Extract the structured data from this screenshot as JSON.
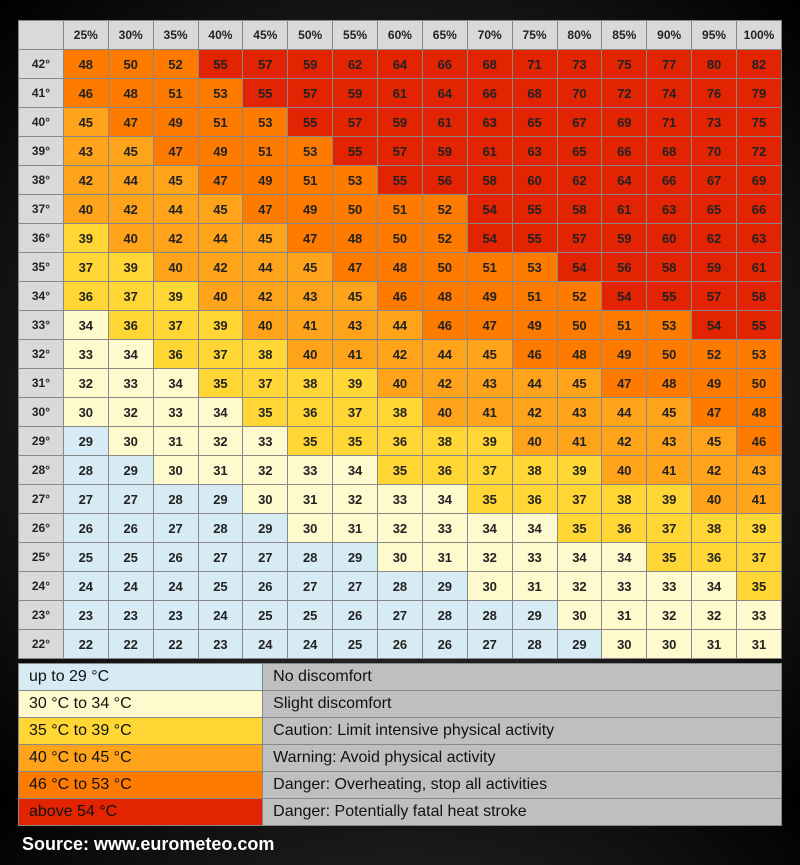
{
  "type": "heatmap-table",
  "background": "radial-gradient #3a3a3a→#000000",
  "cell_font_size": 13,
  "header_bg": "#d9d9d9",
  "columns": [
    "25%",
    "30%",
    "35%",
    "40%",
    "45%",
    "50%",
    "55%",
    "60%",
    "65%",
    "70%",
    "75%",
    "80%",
    "85%",
    "90%",
    "95%",
    "100%"
  ],
  "row_headers": [
    "42°",
    "41°",
    "40°",
    "39°",
    "38°",
    "37°",
    "36°",
    "35°",
    "34°",
    "33°",
    "32°",
    "31°",
    "30°",
    "29°",
    "28°",
    "27°",
    "26°",
    "25°",
    "24°",
    "23°",
    "22°"
  ],
  "cells": [
    [
      48,
      50,
      52,
      55,
      57,
      59,
      62,
      64,
      66,
      68,
      71,
      73,
      75,
      77,
      80,
      82
    ],
    [
      46,
      48,
      51,
      53,
      55,
      57,
      59,
      61,
      64,
      66,
      68,
      70,
      72,
      74,
      76,
      79
    ],
    [
      45,
      47,
      49,
      51,
      53,
      55,
      57,
      59,
      61,
      63,
      65,
      67,
      69,
      71,
      73,
      75
    ],
    [
      43,
      45,
      47,
      49,
      51,
      53,
      55,
      57,
      59,
      61,
      63,
      65,
      66,
      68,
      70,
      72
    ],
    [
      42,
      44,
      45,
      47,
      49,
      51,
      53,
      55,
      56,
      58,
      60,
      62,
      64,
      66,
      67,
      69
    ],
    [
      40,
      42,
      44,
      45,
      47,
      49,
      50,
      51,
      52,
      54,
      55,
      58,
      61,
      63,
      65,
      66
    ],
    [
      39,
      40,
      42,
      44,
      45,
      47,
      48,
      50,
      52,
      54,
      55,
      57,
      59,
      60,
      62,
      63
    ],
    [
      37,
      39,
      40,
      42,
      44,
      45,
      47,
      48,
      50,
      51,
      53,
      54,
      56,
      58,
      59,
      61
    ],
    [
      36,
      37,
      39,
      40,
      42,
      43,
      45,
      46,
      48,
      49,
      51,
      52,
      54,
      55,
      57,
      58
    ],
    [
      34,
      36,
      37,
      39,
      40,
      41,
      43,
      44,
      46,
      47,
      49,
      50,
      51,
      53,
      54,
      55
    ],
    [
      33,
      34,
      36,
      37,
      38,
      40,
      41,
      42,
      44,
      45,
      46,
      48,
      49,
      50,
      52,
      53
    ],
    [
      32,
      33,
      34,
      35,
      37,
      38,
      39,
      40,
      42,
      43,
      44,
      45,
      47,
      48,
      49,
      50
    ],
    [
      30,
      32,
      33,
      34,
      35,
      36,
      37,
      38,
      40,
      41,
      42,
      43,
      44,
      45,
      47,
      48
    ],
    [
      29,
      30,
      31,
      32,
      33,
      35,
      35,
      36,
      38,
      39,
      40,
      41,
      42,
      43,
      45,
      46
    ],
    [
      28,
      29,
      30,
      31,
      32,
      33,
      34,
      35,
      36,
      37,
      38,
      39,
      40,
      41,
      42,
      43
    ],
    [
      27,
      27,
      28,
      29,
      30,
      31,
      32,
      33,
      34,
      35,
      36,
      37,
      38,
      39,
      40,
      41
    ],
    [
      26,
      26,
      27,
      28,
      29,
      30,
      31,
      32,
      33,
      34,
      34,
      35,
      36,
      37,
      38,
      39
    ],
    [
      25,
      25,
      26,
      27,
      27,
      28,
      29,
      30,
      31,
      32,
      33,
      34,
      34,
      35,
      36,
      37
    ],
    [
      24,
      24,
      24,
      25,
      26,
      27,
      27,
      28,
      29,
      30,
      31,
      32,
      33,
      33,
      34,
      35
    ],
    [
      23,
      23,
      23,
      24,
      25,
      25,
      26,
      27,
      28,
      28,
      29,
      30,
      31,
      32,
      32,
      33
    ],
    [
      22,
      22,
      22,
      23,
      24,
      24,
      25,
      26,
      26,
      27,
      28,
      29,
      30,
      30,
      31,
      31
    ]
  ],
  "thresholds": [
    {
      "max": 29,
      "color": "#d7ebf5"
    },
    {
      "max": 34,
      "color": "#fffacd"
    },
    {
      "max": 39,
      "color": "#ffd633"
    },
    {
      "max": 45,
      "color": "#ffa31a"
    },
    {
      "max": 53,
      "color": "#ff7b00"
    },
    {
      "max": 9999,
      "color": "#e32402"
    }
  ],
  "legend": [
    {
      "range": "up to 29 °C",
      "desc": "No discomfort",
      "color": "#d7ebf5"
    },
    {
      "range": "30 °C to 34 °C",
      "desc": "Slight discomfort",
      "color": "#fffacd"
    },
    {
      "range": "35 °C to 39 °C",
      "desc": "Caution: Limit intensive physical activity",
      "color": "#ffd633"
    },
    {
      "range": "40 °C to 45 °C",
      "desc": "Warning: Avoid physical activity",
      "color": "#ffa31a"
    },
    {
      "range": "46 °C to 53 °C",
      "desc": "Danger: Overheating, stop all activities",
      "color": "#ff7b00"
    },
    {
      "range": "above 54 °C",
      "desc": "Danger: Potentially fatal heat stroke",
      "color": "#e32402"
    }
  ],
  "legend_desc_bg": "#bfbfbf",
  "source_label": "Source: www.eurometeo.com"
}
